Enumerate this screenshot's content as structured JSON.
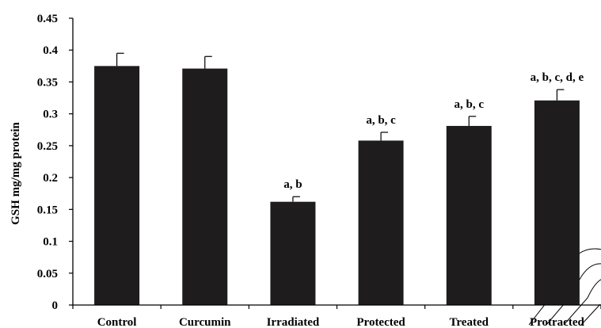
{
  "chart_data": {
    "type": "bar",
    "title": "",
    "xlabel": "",
    "ylabel": "GSH mg/mg protein",
    "ylim": [
      0,
      0.45
    ],
    "yticks": [
      "0",
      "0.05",
      "0.1",
      "0.15",
      "0.2",
      "0.25",
      "0.3",
      "0.35",
      "0.4",
      "0.45"
    ],
    "categories": [
      "Control",
      "Curcumin",
      "Irradiated",
      "Protected",
      "Treated",
      "Protracted"
    ],
    "values": [
      0.375,
      0.371,
      0.162,
      0.258,
      0.281,
      0.321
    ],
    "errors": [
      0.02,
      0.019,
      0.008,
      0.013,
      0.015,
      0.017
    ],
    "annotations": [
      "",
      "",
      "a, b",
      "a, b, c",
      "a, b, c",
      "a, b, c, d, e"
    ],
    "bar_color": "#1e1c1d",
    "grid": false,
    "legend": "none"
  }
}
